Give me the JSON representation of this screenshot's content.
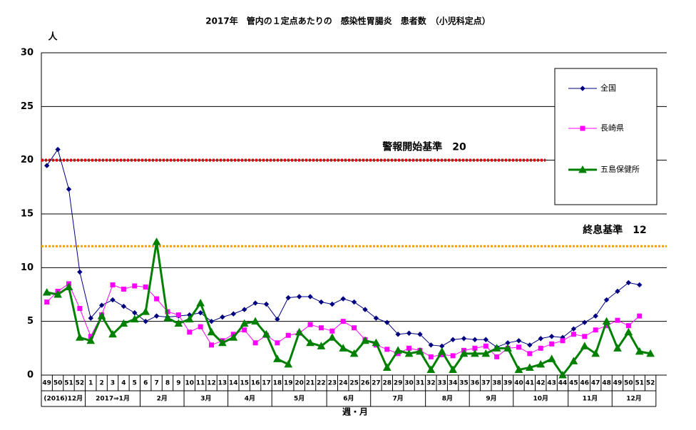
{
  "chart_data": {
    "type": "line",
    "title": "2017年　管内の１定点あたりの　感染性胃腸炎　患者数　（小児科定点）",
    "y_label": "人",
    "x_label": "週・月",
    "categories": [
      "49",
      "50",
      "51",
      "52",
      "1",
      "2",
      "3",
      "4",
      "5",
      "6",
      "7",
      "8",
      "9",
      "10",
      "11",
      "12",
      "13",
      "14",
      "15",
      "16",
      "17",
      "18",
      "19",
      "20",
      "21",
      "22",
      "23",
      "24",
      "25",
      "26",
      "27",
      "28",
      "29",
      "30",
      "31",
      "32",
      "33",
      "34",
      "35",
      "36",
      "37",
      "38",
      "39",
      "40",
      "41",
      "42",
      "43",
      "44",
      "45",
      "46",
      "47",
      "48",
      "49",
      "50",
      "51",
      "52"
    ],
    "month_row": [
      "(2016)12月",
      null,
      null,
      null,
      "2017⇒1月",
      null,
      null,
      null,
      null,
      "2月",
      null,
      null,
      null,
      "3月",
      null,
      null,
      null,
      "4月",
      null,
      null,
      null,
      "5月",
      null,
      null,
      null,
      null,
      "6月",
      null,
      null,
      null,
      "7月",
      null,
      null,
      null,
      null,
      "8月",
      null,
      null,
      null,
      "9月",
      null,
      null,
      null,
      "10月",
      null,
      null,
      null,
      null,
      "11月",
      null,
      null,
      null,
      "12月",
      null,
      null,
      null
    ],
    "ylim": [
      0,
      30
    ],
    "yticks": [
      0,
      5,
      10,
      15,
      20,
      25,
      30
    ],
    "grid": true,
    "series": [
      {
        "name": "全国",
        "color": "#000080",
        "marker": "diamond",
        "values": [
          19.5,
          21,
          17.3,
          9.6,
          5.3,
          6.5,
          7.0,
          6.4,
          5.8,
          5.0,
          5.5,
          5.4,
          5.5,
          5.6,
          5.8,
          5.0,
          5.4,
          5.7,
          6.1,
          6.7,
          6.6,
          5.2,
          7.2,
          7.3,
          7.3,
          6.8,
          6.6,
          7.1,
          6.8,
          6.1,
          5.3,
          4.9,
          3.8,
          3.9,
          3.8,
          2.8,
          2.7,
          3.3,
          3.4,
          3.3,
          3.3,
          2.6,
          3.0,
          3.2,
          2.8,
          3.4,
          3.6,
          3.5,
          4.3,
          4.9,
          5.5,
          7.0,
          7.8,
          8.6,
          8.4,
          null
        ]
      },
      {
        "name": "長崎県",
        "color": "#ff00ff",
        "marker": "square",
        "values": [
          6.8,
          7.8,
          8.5,
          6.2,
          3.6,
          5.6,
          8.4,
          8.0,
          8.3,
          8.2,
          7.1,
          5.9,
          5.6,
          4.0,
          4.5,
          2.8,
          3.2,
          3.8,
          4.2,
          3.0,
          3.7,
          3.0,
          3.7,
          3.9,
          4.7,
          4.4,
          4.1,
          5.0,
          4.4,
          3.3,
          2.8,
          2.4,
          2.0,
          2.5,
          2.3,
          1.7,
          1.9,
          1.8,
          2.3,
          2.5,
          2.7,
          1.7,
          2.5,
          2.6,
          2.0,
          2.5,
          2.9,
          3.2,
          3.8,
          3.6,
          4.2,
          4.6,
          5.1,
          4.6,
          5.5,
          null
        ]
      },
      {
        "name": "五島保健所",
        "color": "#008000",
        "marker": "triangle",
        "values": [
          7.7,
          7.5,
          8.2,
          3.5,
          3.2,
          5.5,
          3.8,
          4.8,
          5.2,
          5.9,
          12.4,
          5.3,
          4.8,
          5.2,
          6.7,
          4.0,
          3.0,
          3.5,
          4.8,
          5.0,
          3.8,
          1.5,
          1.0,
          4.0,
          3.0,
          2.7,
          3.5,
          2.5,
          2.0,
          3.2,
          3.0,
          0.7,
          2.3,
          2.0,
          2.2,
          0.5,
          2.2,
          0.5,
          2.0,
          2.0,
          2.0,
          2.5,
          2.5,
          0.5,
          0.7,
          1.0,
          1.5,
          0.0,
          1.3,
          2.7,
          2.0,
          5.0,
          2.5,
          4.0,
          2.2,
          2.0
        ]
      }
    ],
    "reference_lines": [
      {
        "label": "警報開始基準　20",
        "value": 20,
        "color": "#e00000"
      },
      {
        "label": "終息基準　12",
        "value": 12,
        "color": "#f5a000"
      }
    ]
  }
}
